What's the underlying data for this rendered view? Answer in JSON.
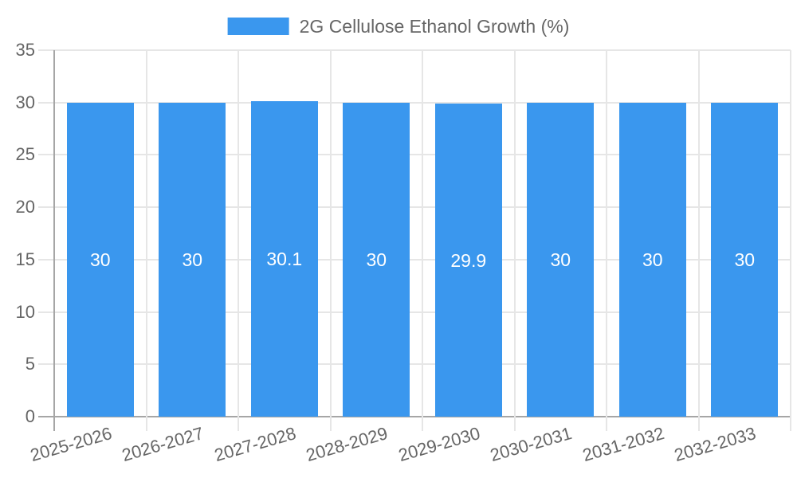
{
  "chart_data": {
    "type": "bar",
    "title": "2G Cellulose Ethanol Growth (%)",
    "legend": {
      "label": "2G Cellulose Ethanol Growth (%)",
      "position": "top"
    },
    "categories": [
      "2025-2026",
      "2026-2027",
      "2027-2028",
      "2028-2029",
      "2029-2030",
      "2030-2031",
      "2031-2032",
      "2032-2033"
    ],
    "series": [
      {
        "name": "2G Cellulose Ethanol Growth (%)",
        "values": [
          30,
          30,
          30.1,
          30,
          29.9,
          30,
          30,
          30
        ]
      }
    ],
    "bar_value_labels": [
      "30",
      "30",
      "30.1",
      "30",
      "29.9",
      "30",
      "30",
      "30"
    ],
    "xlabel": "",
    "ylabel": "",
    "ylim": [
      0,
      35
    ],
    "yticks": [
      0,
      5,
      10,
      15,
      20,
      25,
      30,
      35
    ],
    "ytick_labels": [
      "0",
      "5",
      "10",
      "15",
      "20",
      "25",
      "30",
      "35"
    ],
    "grid": true,
    "colors": {
      "bar": "#3A97EE",
      "axis_text": "#666666",
      "grid_line": "#e6e6e6",
      "axis_line": "#a6a6a6",
      "bar_label_text": "#ffffff",
      "background": "#ffffff"
    }
  }
}
